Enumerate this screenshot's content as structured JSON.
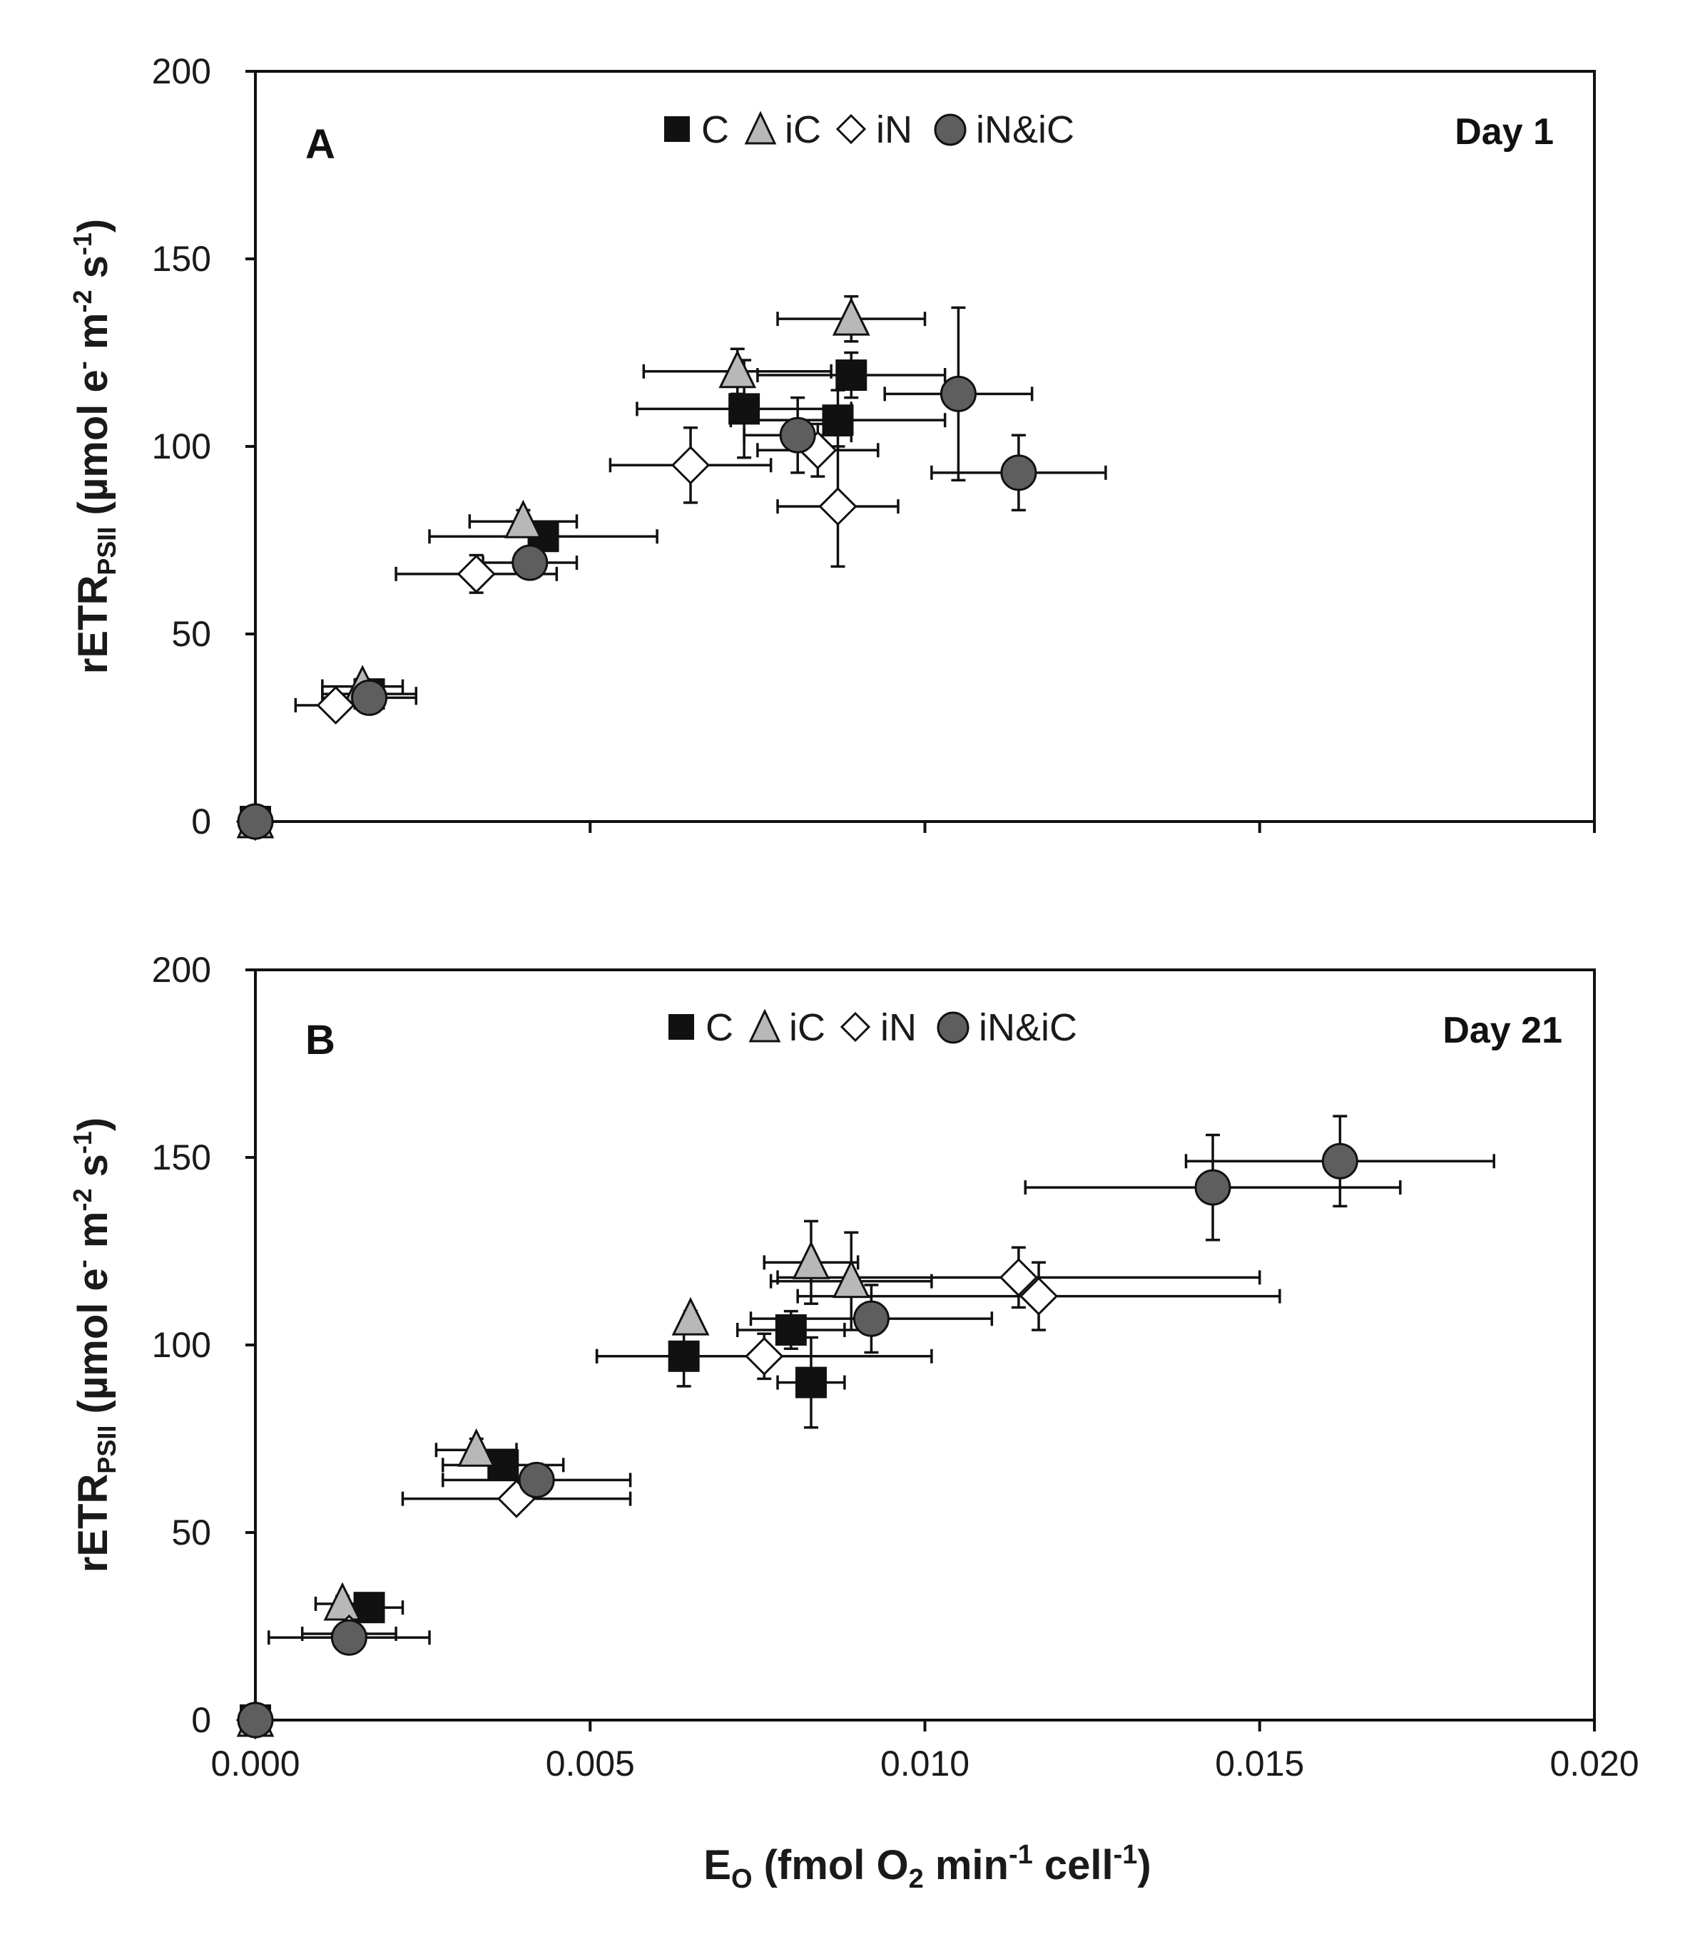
{
  "colors": {
    "axis": "#111111",
    "C": "#111111",
    "iC_fill": "#b8b8b8",
    "iN_fill": "#ffffff",
    "iNiC_fill": "#5e5e5e",
    "errorbar": "#111111"
  },
  "chart_data": [
    {
      "type": "scatter",
      "panel": "A",
      "day_label": "Day 1",
      "xlabel_parts": {
        "E": "E",
        "O": "O",
        "open": " (fmol O",
        "two": "2",
        "min": " min",
        "neg1a": "-1",
        "cell": " cell",
        "neg1b": "-1",
        "close": ")"
      },
      "ylabel_parts": {
        "rETR": "rETR",
        "PSII": "PSII",
        "open": " (µmol e",
        "minus": "-",
        "m": " m",
        "neg2": "-2",
        "s": " s",
        "neg1": "-1",
        "close": ")"
      },
      "xlim": [
        0,
        0.02
      ],
      "ylim": [
        0,
        200
      ],
      "xticks": [
        0,
        0.005,
        0.01,
        0.015,
        0.02
      ],
      "xtick_labels": [],
      "yticks": [
        0,
        50,
        100,
        150,
        200
      ],
      "ytick_labels": [
        "0",
        "50",
        "100",
        "150",
        "200"
      ],
      "legend": [
        {
          "name": "C",
          "marker": "square"
        },
        {
          "name": "iC",
          "marker": "triangle"
        },
        {
          "name": "iN",
          "marker": "diamond"
        },
        {
          "name": "iN&iC",
          "marker": "circle"
        }
      ],
      "series": [
        {
          "name": "C",
          "marker": "square",
          "points": [
            {
              "x": 0,
              "y": 0,
              "xerr": 0,
              "yerr": 0
            },
            {
              "x": 0.0017,
              "y": 34,
              "xerr": 0.0007,
              "yerr": 2
            },
            {
              "x": 0.0043,
              "y": 76,
              "xerr": 0.0017,
              "yerr": 3
            },
            {
              "x": 0.0073,
              "y": 110,
              "xerr": 0.0016,
              "yerr": 13
            },
            {
              "x": 0.0087,
              "y": 107,
              "xerr": 0.0016,
              "yerr": 8
            },
            {
              "x": 0.0089,
              "y": 119,
              "xerr": 0.0014,
              "yerr": 6
            }
          ]
        },
        {
          "name": "iC",
          "marker": "triangle",
          "points": [
            {
              "x": 0,
              "y": 0,
              "xerr": 0,
              "yerr": 0
            },
            {
              "x": 0.0016,
              "y": 36,
              "xerr": 0.0006,
              "yerr": 2
            },
            {
              "x": 0.004,
              "y": 80,
              "xerr": 0.0008,
              "yerr": 3
            },
            {
              "x": 0.0072,
              "y": 120,
              "xerr": 0.0014,
              "yerr": 6
            },
            {
              "x": 0.0089,
              "y": 134,
              "xerr": 0.0011,
              "yerr": 6
            }
          ]
        },
        {
          "name": "iN",
          "marker": "diamond",
          "points": [
            {
              "x": 0,
              "y": 0,
              "xerr": 0,
              "yerr": 0
            },
            {
              "x": 0.0012,
              "y": 31,
              "xerr": 0.0006,
              "yerr": 2
            },
            {
              "x": 0.0033,
              "y": 66,
              "xerr": 0.0012,
              "yerr": 5
            },
            {
              "x": 0.0065,
              "y": 95,
              "xerr": 0.0012,
              "yerr": 10
            },
            {
              "x": 0.0084,
              "y": 99,
              "xerr": 0.0009,
              "yerr": 7
            },
            {
              "x": 0.0087,
              "y": 84,
              "xerr": 0.0009,
              "yerr": 16
            }
          ]
        },
        {
          "name": "iN&iC",
          "marker": "circle",
          "points": [
            {
              "x": 0,
              "y": 0,
              "xerr": 0,
              "yerr": 0
            },
            {
              "x": 0.0017,
              "y": 33,
              "xerr": 0.0007,
              "yerr": 2
            },
            {
              "x": 0.0041,
              "y": 69,
              "xerr": 0.0007,
              "yerr": 3
            },
            {
              "x": 0.0081,
              "y": 103,
              "xerr": 0.0008,
              "yerr": 10
            },
            {
              "x": 0.0105,
              "y": 114,
              "xerr": 0.0011,
              "yerr": 23
            },
            {
              "x": 0.0114,
              "y": 93,
              "xerr": 0.0013,
              "yerr": 10
            }
          ]
        }
      ]
    },
    {
      "type": "scatter",
      "panel": "B",
      "day_label": "Day 21",
      "xlabel_parts": {
        "E": "E",
        "O": "O",
        "open": " (fmol O",
        "two": "2",
        "min": " min",
        "neg1a": "-1",
        "cell": " cell",
        "neg1b": "-1",
        "close": ")"
      },
      "ylabel_parts": {
        "rETR": "rETR",
        "PSII": "PSII",
        "open": " (µmol e",
        "minus": "-",
        "m": " m",
        "neg2": "-2",
        "s": " s",
        "neg1": "-1",
        "close": ")"
      },
      "xlim": [
        0,
        0.02
      ],
      "ylim": [
        0,
        200
      ],
      "xticks": [
        0,
        0.005,
        0.01,
        0.015,
        0.02
      ],
      "xtick_labels": [
        "0.000",
        "0.005",
        "0.010",
        "0.015",
        "0.020"
      ],
      "yticks": [
        0,
        50,
        100,
        150,
        200
      ],
      "ytick_labels": [
        "0",
        "50",
        "100",
        "150",
        "200"
      ],
      "legend": [
        {
          "name": "C",
          "marker": "square"
        },
        {
          "name": "iC",
          "marker": "triangle"
        },
        {
          "name": "iN",
          "marker": "diamond"
        },
        {
          "name": "iN&iC",
          "marker": "circle"
        }
      ],
      "series": [
        {
          "name": "C",
          "marker": "square",
          "points": [
            {
              "x": 0,
              "y": 0,
              "xerr": 0,
              "yerr": 0
            },
            {
              "x": 0.0017,
              "y": 30,
              "xerr": 0.0005,
              "yerr": 2
            },
            {
              "x": 0.0037,
              "y": 68,
              "xerr": 0.0009,
              "yerr": 3
            },
            {
              "x": 0.0064,
              "y": 97,
              "xerr": 0.0013,
              "yerr": 8
            },
            {
              "x": 0.008,
              "y": 104,
              "xerr": 0.0008,
              "yerr": 5
            },
            {
              "x": 0.0083,
              "y": 90,
              "xerr": 0.0005,
              "yerr": 12
            }
          ]
        },
        {
          "name": "iC",
          "marker": "triangle",
          "points": [
            {
              "x": 0,
              "y": 0,
              "xerr": 0,
              "yerr": 0
            },
            {
              "x": 0.0013,
              "y": 31,
              "xerr": 0.0004,
              "yerr": 2
            },
            {
              "x": 0.0033,
              "y": 72,
              "xerr": 0.0006,
              "yerr": 3
            },
            {
              "x": 0.0065,
              "y": 107,
              "xerr": 0,
              "yerr": 2
            },
            {
              "x": 0.0083,
              "y": 122,
              "xerr": 0.0007,
              "yerr": 11
            },
            {
              "x": 0.0089,
              "y": 117,
              "xerr": 0.0012,
              "yerr": 13
            }
          ]
        },
        {
          "name": "iN",
          "marker": "diamond",
          "points": [
            {
              "x": 0,
              "y": 0,
              "xerr": 0,
              "yerr": 0
            },
            {
              "x": 0.0014,
              "y": 23,
              "xerr": 0.0007,
              "yerr": 2
            },
            {
              "x": 0.0039,
              "y": 59,
              "xerr": 0.0017,
              "yerr": 2
            },
            {
              "x": 0.0076,
              "y": 97,
              "xerr": 0.0025,
              "yerr": 6
            },
            {
              "x": 0.0114,
              "y": 118,
              "xerr": 0.0036,
              "yerr": 8
            },
            {
              "x": 0.0117,
              "y": 113,
              "xerr": 0.0036,
              "yerr": 9
            }
          ]
        },
        {
          "name": "iN&iC",
          "marker": "circle",
          "points": [
            {
              "x": 0,
              "y": 0,
              "xerr": 0,
              "yerr": 0
            },
            {
              "x": 0.0014,
              "y": 22,
              "xerr": 0.0012,
              "yerr": 2
            },
            {
              "x": 0.0042,
              "y": 64,
              "xerr": 0.0014,
              "yerr": 4
            },
            {
              "x": 0.0092,
              "y": 107,
              "xerr": 0.0018,
              "yerr": 9
            },
            {
              "x": 0.0143,
              "y": 142,
              "xerr": 0.0028,
              "yerr": 14
            },
            {
              "x": 0.0162,
              "y": 149,
              "xerr": 0.0023,
              "yerr": 12
            }
          ]
        }
      ]
    }
  ]
}
